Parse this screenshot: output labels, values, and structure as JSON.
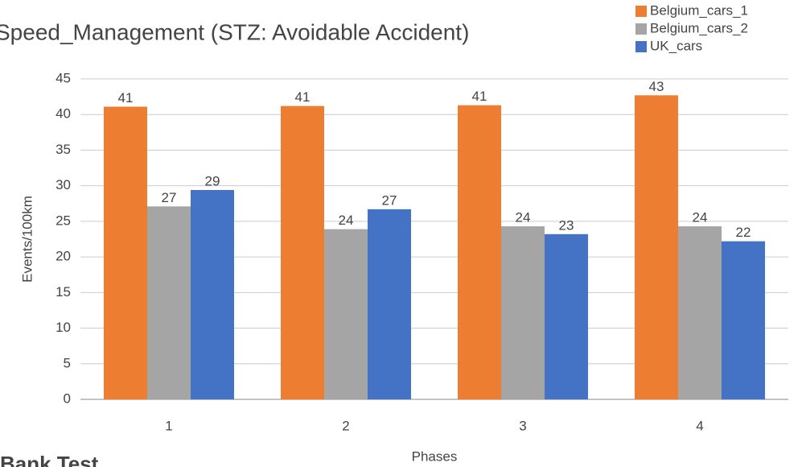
{
  "chart_data": {
    "type": "bar",
    "title": "Speed_Management (STZ: Avoidable Accident)",
    "x_label": "Phases",
    "y_label": "Events/100km",
    "caption": "Bank Test",
    "categories": [
      "1",
      "2",
      "3",
      "4"
    ],
    "series": [
      {
        "name": "Belgium_cars_1",
        "color": "#ed7d31",
        "values": [
          41.1,
          41.2,
          41.3,
          42.7
        ],
        "value_labels": [
          "41",
          "41",
          "41",
          "43"
        ]
      },
      {
        "name": "Belgium_cars_2",
        "color": "#a5a5a5",
        "values": [
          27.1,
          23.9,
          24.3,
          24.3
        ],
        "value_labels": [
          "27",
          "24",
          "24",
          "24"
        ]
      },
      {
        "name": "UK_cars",
        "color": "#4472c4",
        "values": [
          29.4,
          26.7,
          23.2,
          22.2
        ],
        "value_labels": [
          "29",
          "27",
          "23",
          "22"
        ]
      }
    ],
    "ylim": [
      0,
      45
    ],
    "yticks": [
      0,
      5,
      10,
      15,
      20,
      25,
      30,
      35,
      40,
      45
    ],
    "grid": true,
    "legend": "top-right"
  }
}
